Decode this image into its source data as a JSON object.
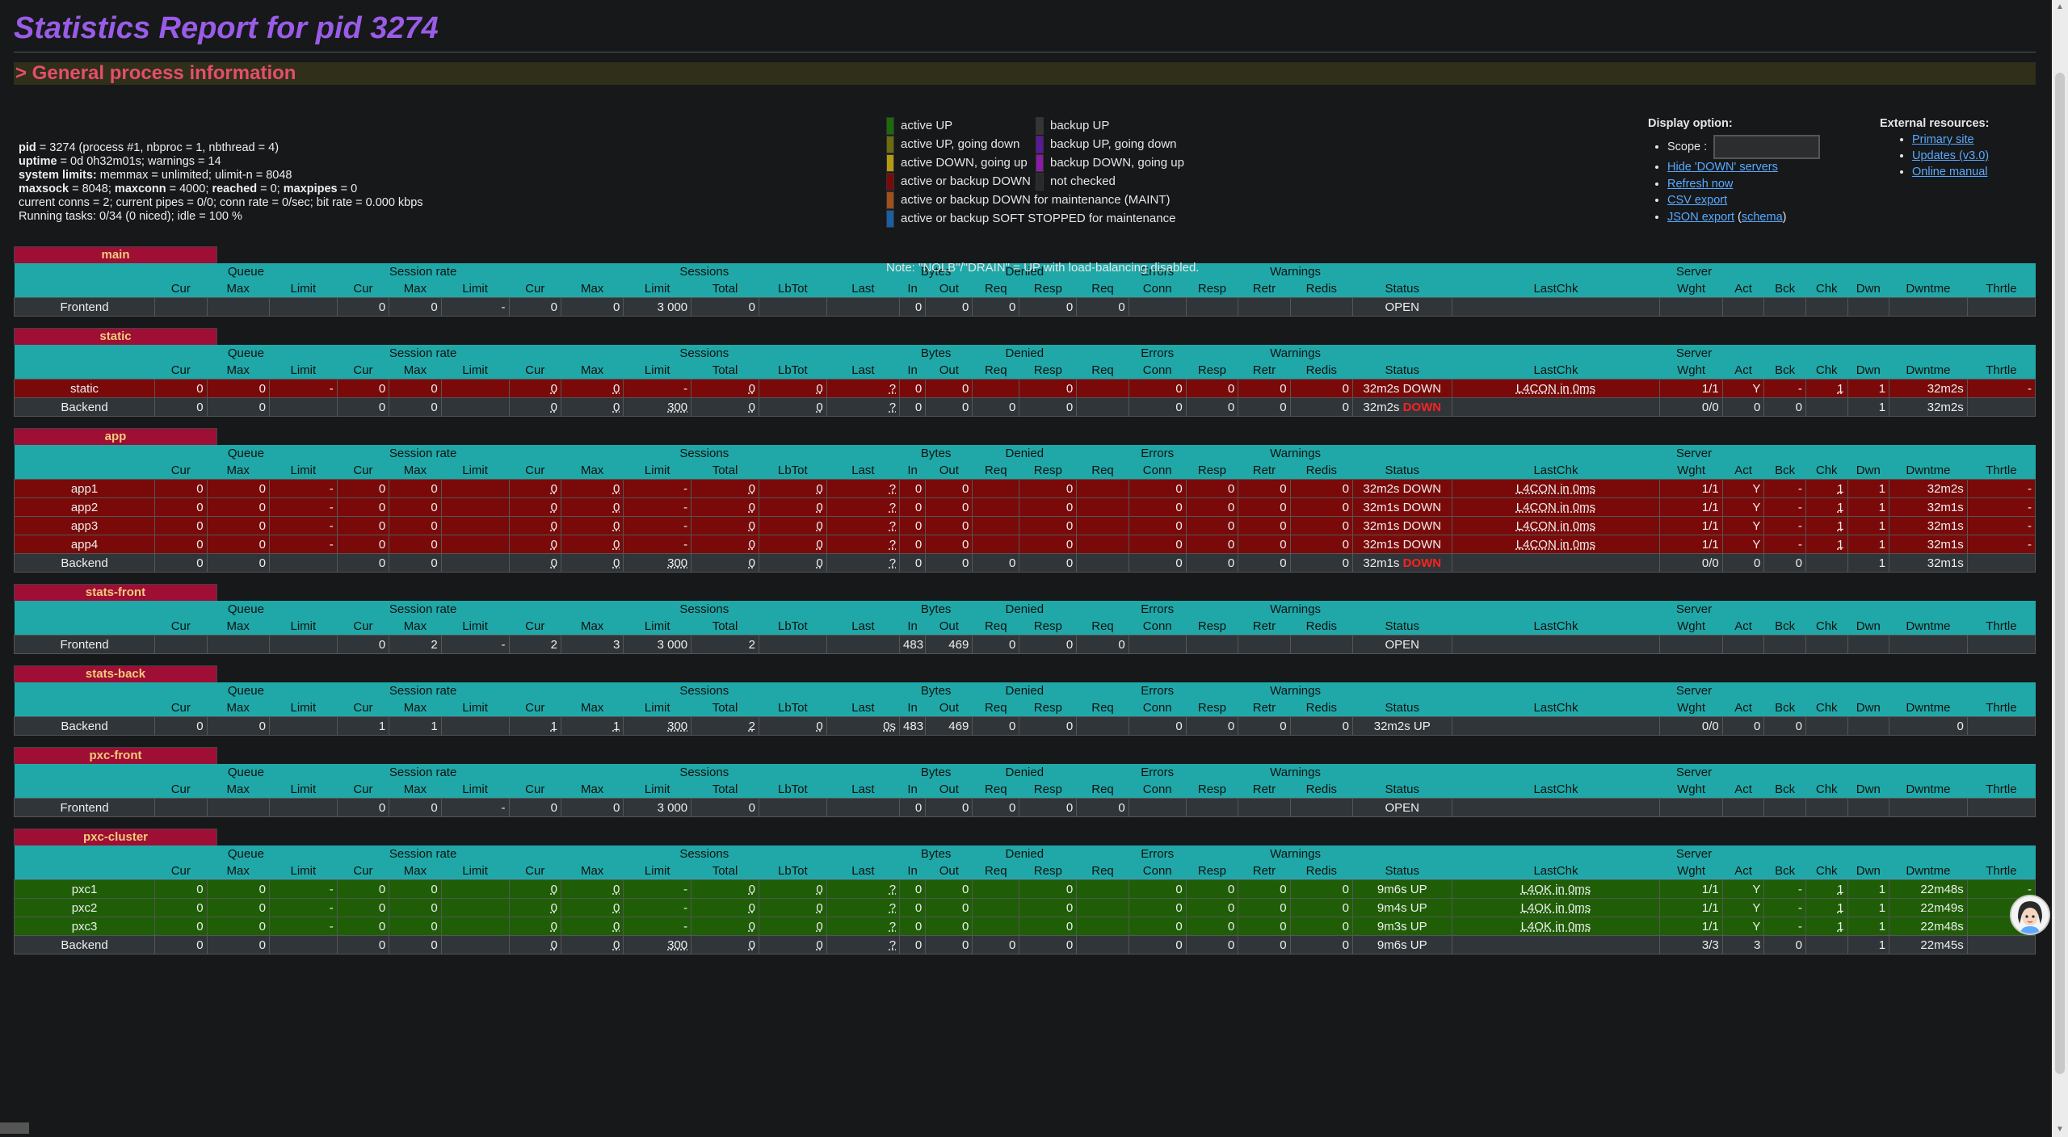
{
  "page_title": "Statistics Report for pid 3274",
  "general_title": "> General process information",
  "process": {
    "l1": [
      {
        "k": "pid",
        "v": " = 3274 (process #1, nbproc = 1, nbthread = 4)"
      }
    ],
    "l2": [
      {
        "k": "uptime",
        "v": " = 0d 0h32m01s; warnings = 14"
      }
    ],
    "l3": [
      {
        "k": "system limits:",
        "v": " memmax = unlimited; ulimit-n = 8048"
      }
    ],
    "l4": [
      {
        "k": "maxsock",
        "v": " = 8048; "
      },
      {
        "k": "maxconn",
        "v": " = 4000; "
      },
      {
        "k": "reached",
        "v": " = 0; "
      },
      {
        "k": "maxpipes",
        "v": " = 0"
      }
    ],
    "l5": "current conns = 2; current pipes = 0/0; conn rate = 0/sec; bit rate = 0.000 kbps",
    "l6": "Running tasks: 0/34 (0 niced); idle = 100 %"
  },
  "legend": [
    {
      "label": "active UP",
      "color": "#1c6a08"
    },
    {
      "label": "backup UP",
      "color": "#353535"
    },
    {
      "label": "active UP, going down",
      "color": "#6a6d0a"
    },
    {
      "label": "backup UP, going down",
      "color": "#5a189a"
    },
    {
      "label": "active DOWN, going up",
      "color": "#b49a0e"
    },
    {
      "label": "backup DOWN, going up",
      "color": "#8a1aa8"
    },
    {
      "label": "active or backup DOWN",
      "color": "#7a0a0a"
    },
    {
      "label": "not checked",
      "color": "#2a2a2a"
    },
    {
      "label": "active or backup DOWN for maintenance (MAINT)",
      "color": "#a0501a"
    },
    {
      "label": "active or backup SOFT STOPPED for maintenance",
      "color": "#1a5ea8"
    }
  ],
  "legend_note": "Note: \"NOLB\"/\"DRAIN\" = UP with load-balancing disabled.",
  "display": {
    "title": "Display option:",
    "scope_label": "Scope : ",
    "links": [
      "Hide 'DOWN' servers",
      "Refresh now",
      "CSV export"
    ],
    "json_link": "JSON export",
    "schema_link": "schema"
  },
  "external": {
    "title": "External resources:",
    "links": [
      "Primary site",
      "Updates (v3.0)",
      "Online manual"
    ]
  },
  "headers": {
    "groups": [
      "Queue",
      "Session rate",
      "Sessions",
      "Bytes",
      "Denied",
      "Errors",
      "Warnings",
      "Server"
    ],
    "cols": [
      "Cur",
      "Max",
      "Limit",
      "Cur",
      "Max",
      "Limit",
      "Cur",
      "Max",
      "Limit",
      "Total",
      "LbTot",
      "Last",
      "In",
      "Out",
      "Req",
      "Resp",
      "Req",
      "Conn",
      "Resp",
      "Retr",
      "Redis",
      "Status",
      "LastChk",
      "Wght",
      "Act",
      "Bck",
      "Chk",
      "Dwn",
      "Dwntme",
      "Thrtle"
    ]
  },
  "proxies": [
    {
      "name": "main",
      "rows": [
        {
          "t": "front",
          "name": "Frontend",
          "cells": [
            "",
            "",
            "",
            "0",
            "0",
            "-",
            "0",
            "0",
            "3 000",
            "0",
            "",
            "",
            "0",
            "0",
            "0",
            "0",
            "0",
            "",
            "",
            "",
            "",
            "OPEN",
            "",
            "",
            "",
            "",
            "",
            "",
            "",
            ""
          ]
        }
      ]
    },
    {
      "name": "static",
      "rows": [
        {
          "t": "down",
          "name": "static",
          "cells": [
            "0",
            "0",
            "-",
            "0",
            "0",
            "",
            "0",
            "0",
            "-",
            "0",
            "0",
            "?",
            "0",
            "0",
            "",
            "0",
            "",
            "0",
            "0",
            "0",
            "0",
            "32m2s DOWN",
            "L4CON in 0ms",
            "1/1",
            "Y",
            "-",
            "1",
            "1",
            "32m2s",
            "-"
          ]
        },
        {
          "t": "back",
          "name": "Backend",
          "cells": [
            "0",
            "0",
            "",
            "0",
            "0",
            "",
            "0",
            "0",
            "300",
            "0",
            "0",
            "?",
            "0",
            "0",
            "0",
            "0",
            "",
            "0",
            "0",
            "0",
            "0",
            "32m2s DOWN",
            "",
            "0/0",
            "0",
            "0",
            "",
            "1",
            "32m2s",
            ""
          ]
        }
      ]
    },
    {
      "name": "app",
      "rows": [
        {
          "t": "down",
          "name": "app1",
          "cells": [
            "0",
            "0",
            "-",
            "0",
            "0",
            "",
            "0",
            "0",
            "-",
            "0",
            "0",
            "?",
            "0",
            "0",
            "",
            "0",
            "",
            "0",
            "0",
            "0",
            "0",
            "32m2s DOWN",
            "L4CON in 0ms",
            "1/1",
            "Y",
            "-",
            "1",
            "1",
            "32m2s",
            "-"
          ]
        },
        {
          "t": "down",
          "name": "app2",
          "cells": [
            "0",
            "0",
            "-",
            "0",
            "0",
            "",
            "0",
            "0",
            "-",
            "0",
            "0",
            "?",
            "0",
            "0",
            "",
            "0",
            "",
            "0",
            "0",
            "0",
            "0",
            "32m1s DOWN",
            "L4CON in 0ms",
            "1/1",
            "Y",
            "-",
            "1",
            "1",
            "32m1s",
            "-"
          ]
        },
        {
          "t": "down",
          "name": "app3",
          "cells": [
            "0",
            "0",
            "-",
            "0",
            "0",
            "",
            "0",
            "0",
            "-",
            "0",
            "0",
            "?",
            "0",
            "0",
            "",
            "0",
            "",
            "0",
            "0",
            "0",
            "0",
            "32m1s DOWN",
            "L4CON in 0ms",
            "1/1",
            "Y",
            "-",
            "1",
            "1",
            "32m1s",
            "-"
          ]
        },
        {
          "t": "down",
          "name": "app4",
          "cells": [
            "0",
            "0",
            "-",
            "0",
            "0",
            "",
            "0",
            "0",
            "-",
            "0",
            "0",
            "?",
            "0",
            "0",
            "",
            "0",
            "",
            "0",
            "0",
            "0",
            "0",
            "32m1s DOWN",
            "L4CON in 0ms",
            "1/1",
            "Y",
            "-",
            "1",
            "1",
            "32m1s",
            "-"
          ]
        },
        {
          "t": "back",
          "name": "Backend",
          "cells": [
            "0",
            "0",
            "",
            "0",
            "0",
            "",
            "0",
            "0",
            "300",
            "0",
            "0",
            "?",
            "0",
            "0",
            "0",
            "0",
            "",
            "0",
            "0",
            "0",
            "0",
            "32m1s DOWN",
            "",
            "0/0",
            "0",
            "0",
            "",
            "1",
            "32m1s",
            ""
          ]
        }
      ]
    },
    {
      "name": "stats-front",
      "rows": [
        {
          "t": "front",
          "name": "Frontend",
          "cells": [
            "",
            "",
            "",
            "0",
            "2",
            "-",
            "2",
            "3",
            "3 000",
            "2",
            "",
            "",
            "483",
            "469",
            "0",
            "0",
            "0",
            "",
            "",
            "",
            "",
            "OPEN",
            "",
            "",
            "",
            "",
            "",
            "",
            "",
            ""
          ]
        }
      ]
    },
    {
      "name": "stats-back",
      "rows": [
        {
          "t": "back",
          "name": "Backend",
          "cells": [
            "0",
            "0",
            "",
            "1",
            "1",
            "",
            "1",
            "1",
            "300",
            "2",
            "0",
            "0s",
            "483",
            "469",
            "0",
            "0",
            "",
            "0",
            "0",
            "0",
            "0",
            "32m2s UP",
            "",
            "0/0",
            "0",
            "0",
            "",
            "",
            "0",
            ""
          ]
        }
      ]
    },
    {
      "name": "pxc-front",
      "rows": [
        {
          "t": "front",
          "name": "Frontend",
          "cells": [
            "",
            "",
            "",
            "0",
            "0",
            "-",
            "0",
            "0",
            "3 000",
            "0",
            "",
            "",
            "0",
            "0",
            "0",
            "0",
            "0",
            "",
            "",
            "",
            "",
            "OPEN",
            "",
            "",
            "",
            "",
            "",
            "",
            "",
            ""
          ]
        }
      ]
    },
    {
      "name": "pxc-cluster",
      "rows": [
        {
          "t": "up",
          "name": "pxc1",
          "cells": [
            "0",
            "0",
            "-",
            "0",
            "0",
            "",
            "0",
            "0",
            "-",
            "0",
            "0",
            "?",
            "0",
            "0",
            "",
            "0",
            "",
            "0",
            "0",
            "0",
            "0",
            "9m6s UP",
            "L4OK in 0ms",
            "1/1",
            "Y",
            "-",
            "1",
            "1",
            "22m48s",
            "-"
          ]
        },
        {
          "t": "up",
          "name": "pxc2",
          "cells": [
            "0",
            "0",
            "-",
            "0",
            "0",
            "",
            "0",
            "0",
            "-",
            "0",
            "0",
            "?",
            "0",
            "0",
            "",
            "0",
            "",
            "0",
            "0",
            "0",
            "0",
            "9m4s UP",
            "L4OK in 0ms",
            "1/1",
            "Y",
            "-",
            "1",
            "1",
            "22m49s",
            "-"
          ]
        },
        {
          "t": "up",
          "name": "pxc3",
          "cells": [
            "0",
            "0",
            "-",
            "0",
            "0",
            "",
            "0",
            "0",
            "-",
            "0",
            "0",
            "?",
            "0",
            "0",
            "",
            "0",
            "",
            "0",
            "0",
            "0",
            "0",
            "9m3s UP",
            "L4OK in 0ms",
            "1/1",
            "Y",
            "-",
            "1",
            "1",
            "22m48s",
            "-"
          ]
        },
        {
          "t": "back",
          "name": "Backend",
          "cells": [
            "0",
            "0",
            "",
            "0",
            "0",
            "",
            "0",
            "0",
            "300",
            "0",
            "0",
            "?",
            "0",
            "0",
            "0",
            "0",
            "",
            "0",
            "0",
            "0",
            "0",
            "9m6s UP",
            "",
            "3/3",
            "3",
            "0",
            "",
            "1",
            "22m45s",
            ""
          ]
        }
      ]
    }
  ]
}
